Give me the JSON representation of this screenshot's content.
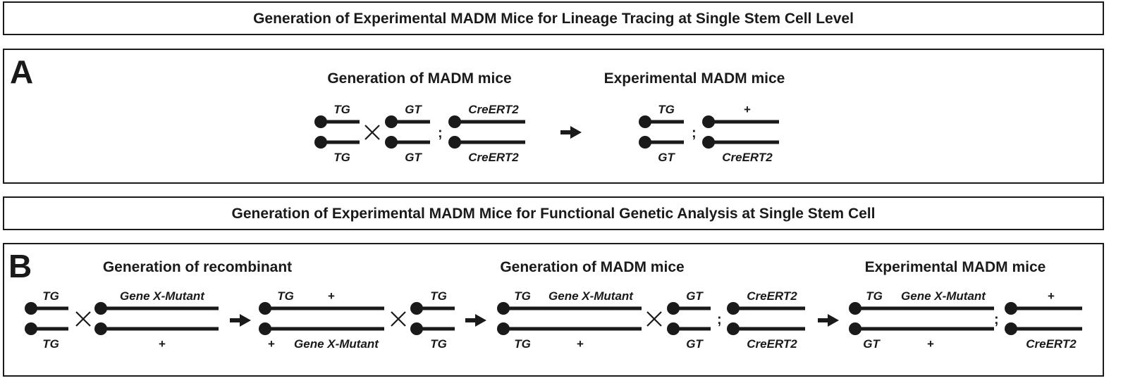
{
  "titles": {
    "lineage": "Generation of Experimental MADM Mice for Lineage Tracing at Single Stem Cell Level",
    "functional": "Generation of Experimental MADM Mice for Functional Genetic Analysis at Single Stem Cell"
  },
  "panelA": {
    "letter": "A",
    "heading_generation": "Generation of MADM mice",
    "heading_experimental": "Experimental MADM mice",
    "pairs": [
      {
        "top": "TG",
        "bottom": "TG"
      },
      {
        "top": "GT",
        "bottom": "GT"
      },
      {
        "top": "CreERT2",
        "bottom": "CreERT2"
      },
      {
        "top": "TG",
        "bottom": "GT"
      },
      {
        "top": "+",
        "bottom": "CreERT2"
      }
    ],
    "cross_symbol": "×",
    "separator": ";"
  },
  "panelB": {
    "letter": "B",
    "heading_recombinant": "Generation of recombinant",
    "heading_generation": "Generation of MADM mice",
    "heading_experimental": "Experimental MADM mice",
    "pairs": [
      {
        "top": "TG",
        "bottom": "TG"
      },
      {
        "top": "Gene X-Mutant",
        "bottom": "+"
      },
      {
        "top_left": "TG",
        "top_right": "+",
        "bottom_left": "+",
        "bottom_right": "Gene X-Mutant"
      },
      {
        "top": "TG",
        "bottom": "TG"
      },
      {
        "top_left": "TG",
        "top_right": "Gene X-Mutant",
        "bottom_left": "TG",
        "bottom_right": "+"
      },
      {
        "top": "GT",
        "bottom": "GT"
      },
      {
        "top": "CreERT2",
        "bottom": "CreERT2"
      },
      {
        "top_left": "TG",
        "top_right": "Gene X-Mutant",
        "bottom_left": "GT",
        "bottom_right": "+"
      },
      {
        "top": "+",
        "bottom": "CreERT2"
      }
    ],
    "cross_symbol": "×",
    "separator": ";"
  }
}
